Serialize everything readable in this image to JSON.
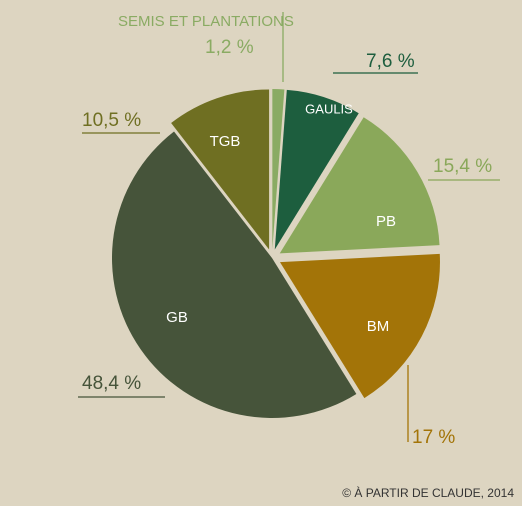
{
  "chart_data": {
    "type": "pie",
    "categories": [
      "SEMIS ET PLANTATIONS",
      "GAULIS",
      "PB",
      "BM",
      "GB",
      "TGB"
    ],
    "values": [
      1.2,
      7.6,
      15.4,
      17,
      48.4,
      10.5
    ],
    "value_labels": [
      "1,2 %",
      "7,6 %",
      "15,4 %",
      "17 %",
      "48,4 %",
      "10,5 %"
    ],
    "colors": [
      "#8aab63",
      "#1d5e3e",
      "#8aa85a",
      "#a37408",
      "#46543a",
      "#6f6f22"
    ],
    "credit": "© À PARTIR DE CLAUDE, 2014"
  }
}
